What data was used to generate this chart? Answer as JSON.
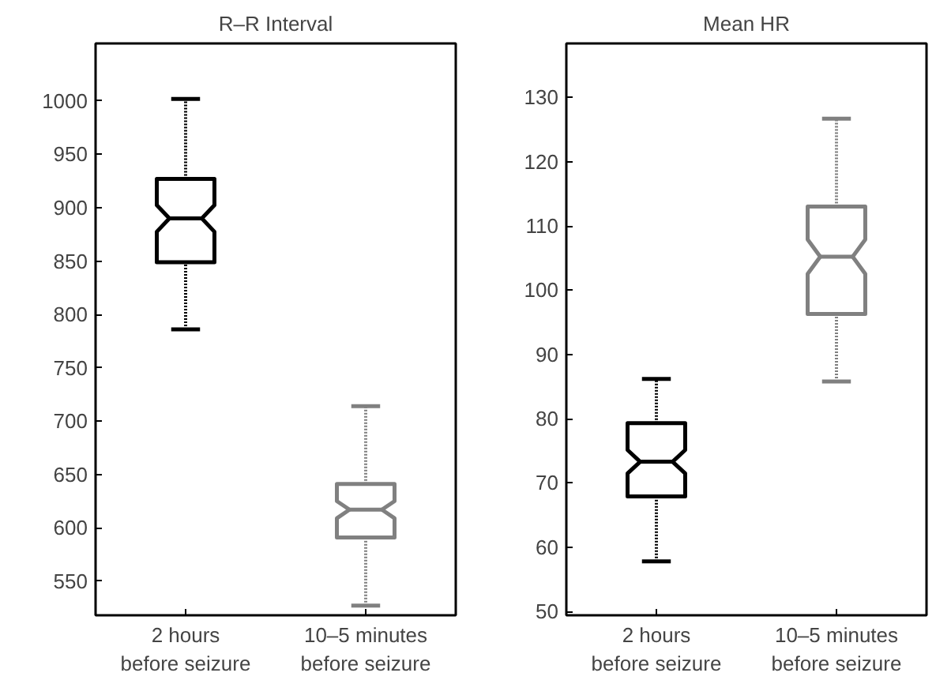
{
  "chart_data": [
    {
      "type": "box",
      "title": "R–R Interval",
      "categories": [
        "2 hours\nbefore seizure",
        "10–5 minutes\nbefore seizure"
      ],
      "colors": [
        "#000000",
        "#808080"
      ],
      "boxes": [
        {
          "low": 786,
          "q1": 849,
          "median": 890,
          "q3": 927,
          "high": 1002
        },
        {
          "low": 527,
          "q1": 591,
          "median": 617,
          "q3": 641,
          "high": 714
        }
      ],
      "ylim": [
        518,
        1054
      ],
      "yticks": [
        550,
        600,
        650,
        700,
        750,
        800,
        850,
        900,
        950,
        1000
      ],
      "grid": false
    },
    {
      "type": "box",
      "title": "Mean HR",
      "categories": [
        "2 hours\nbefore seizure",
        "10–5 minutes\nbefore seizure"
      ],
      "colors": [
        "#000000",
        "#808080"
      ],
      "boxes": [
        {
          "low": 57.8,
          "q1": 67.9,
          "median": 73.3,
          "q3": 79.3,
          "high": 86.2
        },
        {
          "low": 85.8,
          "q1": 96.3,
          "median": 105.2,
          "q3": 113.0,
          "high": 126.7
        }
      ],
      "ylim": [
        49.4,
        138.4
      ],
      "yticks": [
        50,
        60,
        70,
        80,
        90,
        100,
        110,
        120,
        130
      ],
      "grid": false
    }
  ]
}
